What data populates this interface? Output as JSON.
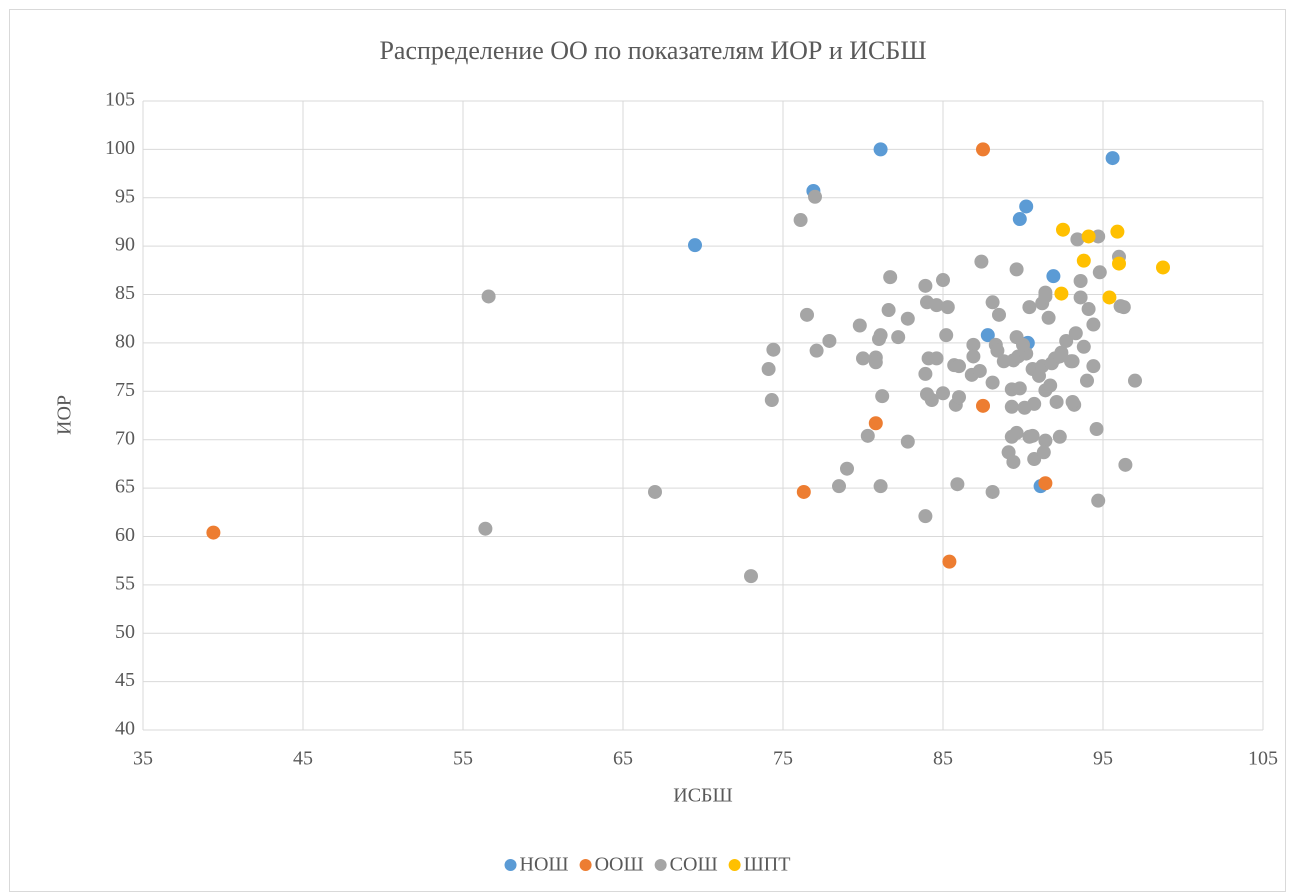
{
  "chart_data": {
    "type": "scatter",
    "title": "Распределение ОО по показателям ИОР и ИСБШ",
    "x_label": "ИСБШ",
    "y_label": "ИОР",
    "xlim": [
      35,
      105
    ],
    "xticks": [
      35,
      45,
      55,
      65,
      75,
      85,
      95,
      105
    ],
    "ylim": [
      40,
      105
    ],
    "yticks": [
      40,
      45,
      50,
      55,
      60,
      65,
      70,
      75,
      80,
      85,
      90,
      95,
      100,
      105
    ],
    "grid": true,
    "legend": "bottom",
    "series": [
      {
        "name": "НОШ",
        "color": "#5b9bd5",
        "x": [
          81.1,
          76.9,
          95.6,
          90.2,
          89.8,
          69.5,
          91.9,
          87.8,
          90.3,
          91.1
        ],
        "y": [
          100,
          95.7,
          99.1,
          94.1,
          92.8,
          90.1,
          86.9,
          80.8,
          80,
          65.2
        ]
      },
      {
        "name": "ООШ",
        "color": "#ed7d31",
        "x": [
          39.4,
          87.5,
          80.8,
          87.5,
          76.3,
          91.4,
          85.4
        ],
        "y": [
          60.4,
          100,
          71.7,
          73.5,
          64.6,
          65.5,
          57.4
        ]
      },
      {
        "name": "СОШ",
        "color": "#a5a5a5",
        "x": [
          56.6,
          56.4,
          67,
          73,
          76.1,
          77,
          76.5,
          74.1,
          74.4,
          74.3,
          77.1,
          77.9,
          79.8,
          80,
          80.8,
          80.8,
          81.1,
          81,
          81.7,
          81.6,
          82.2,
          82.8,
          81.2,
          80.3,
          81.1,
          82.8,
          79,
          78.5,
          83.9,
          83.9,
          84,
          84.6,
          85,
          84.1,
          84.6,
          84,
          84.3,
          85,
          85.3,
          85.2,
          85.7,
          86,
          85.8,
          86,
          85.9,
          83.9,
          87.4,
          86.9,
          86.9,
          86.8,
          87.3,
          88.1,
          88.3,
          88.4,
          88.1,
          88.1,
          88.5,
          88.8,
          89.3,
          89.4,
          89.6,
          89.6,
          89.7,
          89.3,
          89.3,
          89.6,
          89.1,
          89.4,
          89.8,
          90.2,
          90,
          90.1,
          90.4,
          90.6,
          90.4,
          90.6,
          90.7,
          90.7,
          91,
          91.2,
          91.4,
          91.4,
          91.2,
          91.4,
          91.4,
          91.3,
          91.6,
          91.8,
          92,
          91.7,
          92.1,
          92.3,
          92.4,
          92.3,
          92.7,
          93,
          93.2,
          93.1,
          93.3,
          93.1,
          93.4,
          93.6,
          93.6,
          93.8,
          94,
          94.1,
          94.4,
          94.4,
          94.6,
          94.7,
          94.7,
          94.8,
          96,
          96.1,
          96.3,
          96.4,
          97
        ],
        "y": [
          84.8,
          60.8,
          64.6,
          55.9,
          92.7,
          95.1,
          82.9,
          77.3,
          79.3,
          74.1,
          79.2,
          80.2,
          81.8,
          78.4,
          78.5,
          78,
          80.8,
          80.4,
          86.8,
          83.4,
          80.6,
          82.5,
          74.5,
          70.4,
          65.2,
          69.8,
          67,
          65.2,
          76.8,
          85.9,
          84.2,
          83.9,
          86.5,
          78.4,
          78.4,
          74.7,
          74.1,
          74.8,
          83.7,
          80.8,
          77.7,
          77.6,
          73.6,
          74.4,
          65.4,
          62.1,
          88.4,
          79.8,
          78.6,
          76.7,
          77.1,
          84.2,
          79.8,
          79.2,
          75.9,
          64.6,
          82.9,
          78.1,
          75.2,
          78.2,
          87.6,
          80.6,
          78.6,
          73.4,
          70.3,
          70.7,
          68.7,
          67.7,
          75.3,
          78.9,
          79.8,
          73.3,
          70.3,
          70.4,
          83.7,
          77.3,
          73.7,
          68,
          76.6,
          84.1,
          84.8,
          85.2,
          77.6,
          75.1,
          69.9,
          68.7,
          82.6,
          77.9,
          78.4,
          75.6,
          73.9,
          78.6,
          79,
          70.3,
          80.2,
          78.1,
          73.6,
          73.9,
          81,
          78.1,
          90.7,
          84.7,
          86.4,
          79.6,
          76.1,
          83.5,
          81.9,
          77.6,
          71.1,
          63.7,
          91,
          87.3,
          88.9,
          83.8,
          83.7,
          67.4,
          76.1
        ]
      },
      {
        "name": "ШПТ",
        "color": "#ffc000",
        "x": [
          92.5,
          94.1,
          95.9,
          93.8,
          96,
          98.75,
          92.4,
          95.4
        ],
        "y": [
          91.7,
          91,
          91.5,
          88.5,
          88.2,
          87.8,
          85.1,
          84.7
        ]
      }
    ]
  }
}
